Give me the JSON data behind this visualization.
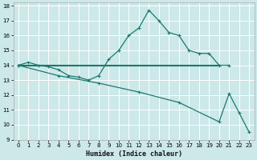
{
  "xlabel": "Humidex (Indice chaleur)",
  "background_color": "#cce8e8",
  "grid_color": "#ffffff",
  "line_color": "#1a7a6e",
  "xlim": [
    -0.5,
    23.5
  ],
  "ylim": [
    9,
    18.2
  ],
  "yticks": [
    9,
    10,
    11,
    12,
    13,
    14,
    15,
    16,
    17,
    18
  ],
  "xticks": [
    0,
    1,
    2,
    3,
    4,
    5,
    6,
    7,
    8,
    9,
    10,
    11,
    12,
    13,
    14,
    15,
    16,
    17,
    18,
    19,
    20,
    21,
    22,
    23
  ],
  "series1_x": [
    0,
    1,
    2,
    3,
    4,
    5,
    6,
    7,
    8,
    9,
    10,
    11,
    12,
    13,
    14,
    15,
    16,
    17,
    18,
    19,
    20,
    21
  ],
  "series1_y": [
    14.0,
    14.2,
    14.0,
    13.9,
    13.7,
    13.3,
    13.2,
    13.0,
    13.3,
    14.4,
    15.0,
    16.0,
    16.5,
    17.7,
    17.0,
    16.2,
    16.0,
    15.0,
    14.8,
    14.8,
    14.0,
    14.0
  ],
  "series2_x": [
    0,
    20
  ],
  "series2_y": [
    14.0,
    14.0
  ],
  "series3_x": [
    0,
    4,
    8,
    12,
    16,
    20,
    21,
    22,
    23
  ],
  "series3_y": [
    14.0,
    13.3,
    12.8,
    12.2,
    11.5,
    10.2,
    12.1,
    10.8,
    9.5
  ]
}
